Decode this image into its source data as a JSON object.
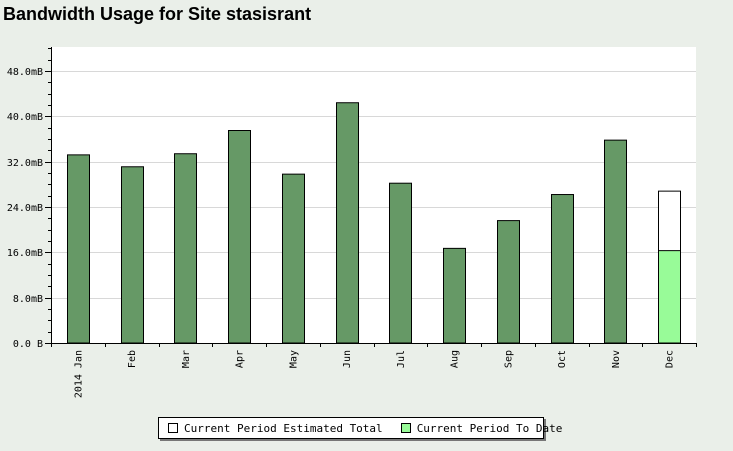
{
  "page": {
    "title": "Bandwidth Usage for Site stasisrant"
  },
  "chart_data": {
    "type": "bar",
    "title": "Bandwidth Usage for Site stasisrant",
    "xlabel": "",
    "ylabel": "",
    "categories": [
      "2014 Jan",
      "Feb",
      "Mar",
      "Apr",
      "May",
      "Jun",
      "Jul",
      "Aug",
      "Sep",
      "Oct",
      "Nov",
      "Dec"
    ],
    "y_ticks": [
      "0.0 B",
      "8.0mB",
      "16.0mB",
      "24.0mB",
      "32.0mB",
      "40.0mB",
      "48.0mB"
    ],
    "y_tick_values": [
      0,
      8,
      16,
      24,
      32,
      40,
      48
    ],
    "ylim": [
      0,
      48
    ],
    "y_unit": "mB",
    "grid": true,
    "legend_position": "bottom",
    "values": [
      33.2,
      31.1,
      33.4,
      37.5,
      29.8,
      42.4,
      28.2,
      16.7,
      21.6,
      26.2,
      35.8,
      null
    ],
    "series": [
      {
        "name": "Current Period Estimated Total",
        "values": [
          null,
          null,
          null,
          null,
          null,
          null,
          null,
          null,
          null,
          null,
          null,
          26.8
        ],
        "color": "#ffffff"
      },
      {
        "name": "Current Period To Date",
        "values": [
          null,
          null,
          null,
          null,
          null,
          null,
          null,
          null,
          null,
          null,
          null,
          16.3
        ],
        "color": "#98fb98"
      }
    ],
    "colors": {
      "past_bar": "#669966",
      "estimated_total": "#ffffff",
      "to_date": "#98fb98"
    }
  }
}
